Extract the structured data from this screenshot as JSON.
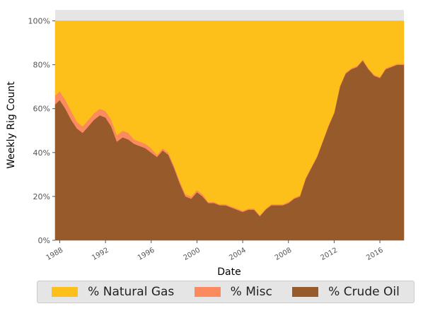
{
  "chart_data": {
    "type": "area",
    "stacked": true,
    "xlabel": "Date",
    "ylabel": "Weekly Rig Count",
    "xlim": [
      1987.6,
      2018.1
    ],
    "ylim": [
      0,
      1.05
    ],
    "x_ticks": [
      1988,
      1992,
      1996,
      2000,
      2004,
      2008,
      2012,
      2016
    ],
    "x_tick_labels": [
      "1988",
      "1992",
      "1996",
      "2000",
      "2004",
      "2008",
      "2012",
      "2016"
    ],
    "y_ticks": [
      0,
      0.2,
      0.4,
      0.6,
      0.8,
      1.0
    ],
    "y_tick_labels": [
      "0%",
      "20%",
      "40%",
      "60%",
      "80%",
      "100%"
    ],
    "grid": false,
    "legend_position": "bottom",
    "x": [
      1987.6,
      1988.0,
      1988.5,
      1989.0,
      1989.5,
      1990.0,
      1990.5,
      1991.0,
      1991.5,
      1992.0,
      1992.5,
      1993.0,
      1993.5,
      1994.0,
      1994.5,
      1995.0,
      1995.5,
      1996.0,
      1996.5,
      1997.0,
      1997.5,
      1998.0,
      1998.5,
      1999.0,
      1999.5,
      2000.0,
      2000.5,
      2001.0,
      2001.5,
      2002.0,
      2002.5,
      2003.0,
      2003.5,
      2004.0,
      2004.5,
      2005.0,
      2005.5,
      2006.0,
      2006.5,
      2007.0,
      2007.5,
      2008.0,
      2008.5,
      2009.0,
      2009.5,
      2010.0,
      2010.5,
      2011.0,
      2011.5,
      2012.0,
      2012.5,
      2013.0,
      2013.5,
      2014.0,
      2014.5,
      2015.0,
      2015.5,
      2016.0,
      2016.5,
      2017.0,
      2017.5,
      2018.1
    ],
    "series": [
      {
        "name": "% Crude Oil",
        "color": "#965a2b",
        "values": [
          0.62,
          0.64,
          0.6,
          0.55,
          0.51,
          0.49,
          0.52,
          0.55,
          0.57,
          0.56,
          0.52,
          0.45,
          0.47,
          0.46,
          0.44,
          0.43,
          0.42,
          0.4,
          0.38,
          0.41,
          0.39,
          0.33,
          0.26,
          0.2,
          0.19,
          0.22,
          0.2,
          0.17,
          0.17,
          0.16,
          0.16,
          0.15,
          0.14,
          0.13,
          0.14,
          0.14,
          0.11,
          0.14,
          0.16,
          0.16,
          0.16,
          0.17,
          0.19,
          0.2,
          0.28,
          0.33,
          0.38,
          0.45,
          0.52,
          0.58,
          0.7,
          0.76,
          0.78,
          0.79,
          0.82,
          0.78,
          0.75,
          0.74,
          0.78,
          0.79,
          0.8,
          0.8
        ]
      },
      {
        "name": "% Misc",
        "color": "#fb8b5e",
        "values": [
          0.04,
          0.04,
          0.04,
          0.04,
          0.03,
          0.03,
          0.03,
          0.03,
          0.03,
          0.03,
          0.03,
          0.03,
          0.03,
          0.03,
          0.02,
          0.02,
          0.02,
          0.02,
          0.01,
          0.01,
          0.01,
          0.01,
          0.01,
          0.01,
          0.01,
          0.01,
          0.01,
          0.005,
          0.005,
          0.005,
          0.005,
          0.005,
          0.005,
          0.005,
          0.005,
          0.005,
          0.005,
          0.005,
          0.005,
          0.005,
          0.005,
          0.005,
          0.005,
          0.005,
          0.005,
          0.005,
          0.005,
          0.005,
          0.005,
          0.005,
          0.005,
          0.005,
          0.005,
          0.005,
          0.005,
          0.005,
          0.005,
          0.005,
          0.005,
          0.005,
          0.005,
          0.005
        ]
      },
      {
        "name": "% Natural Gas",
        "color": "#fdc01a",
        "values": [
          0.34,
          0.32,
          0.36,
          0.41,
          0.46,
          0.48,
          0.45,
          0.42,
          0.4,
          0.41,
          0.45,
          0.52,
          0.5,
          0.51,
          0.54,
          0.55,
          0.56,
          0.58,
          0.61,
          0.58,
          0.6,
          0.66,
          0.73,
          0.79,
          0.8,
          0.77,
          0.79,
          0.825,
          0.825,
          0.835,
          0.835,
          0.845,
          0.855,
          0.865,
          0.855,
          0.855,
          0.885,
          0.855,
          0.835,
          0.835,
          0.835,
          0.825,
          0.805,
          0.795,
          0.715,
          0.665,
          0.615,
          0.545,
          0.475,
          0.415,
          0.295,
          0.235,
          0.215,
          0.205,
          0.175,
          0.215,
          0.245,
          0.255,
          0.215,
          0.205,
          0.195,
          0.195
        ]
      }
    ]
  },
  "legend": {
    "items": [
      {
        "label": "% Natural Gas",
        "color": "#fdc01a"
      },
      {
        "label": "% Misc",
        "color": "#fb8b5e"
      },
      {
        "label": "% Crude Oil",
        "color": "#965a2b"
      }
    ]
  }
}
